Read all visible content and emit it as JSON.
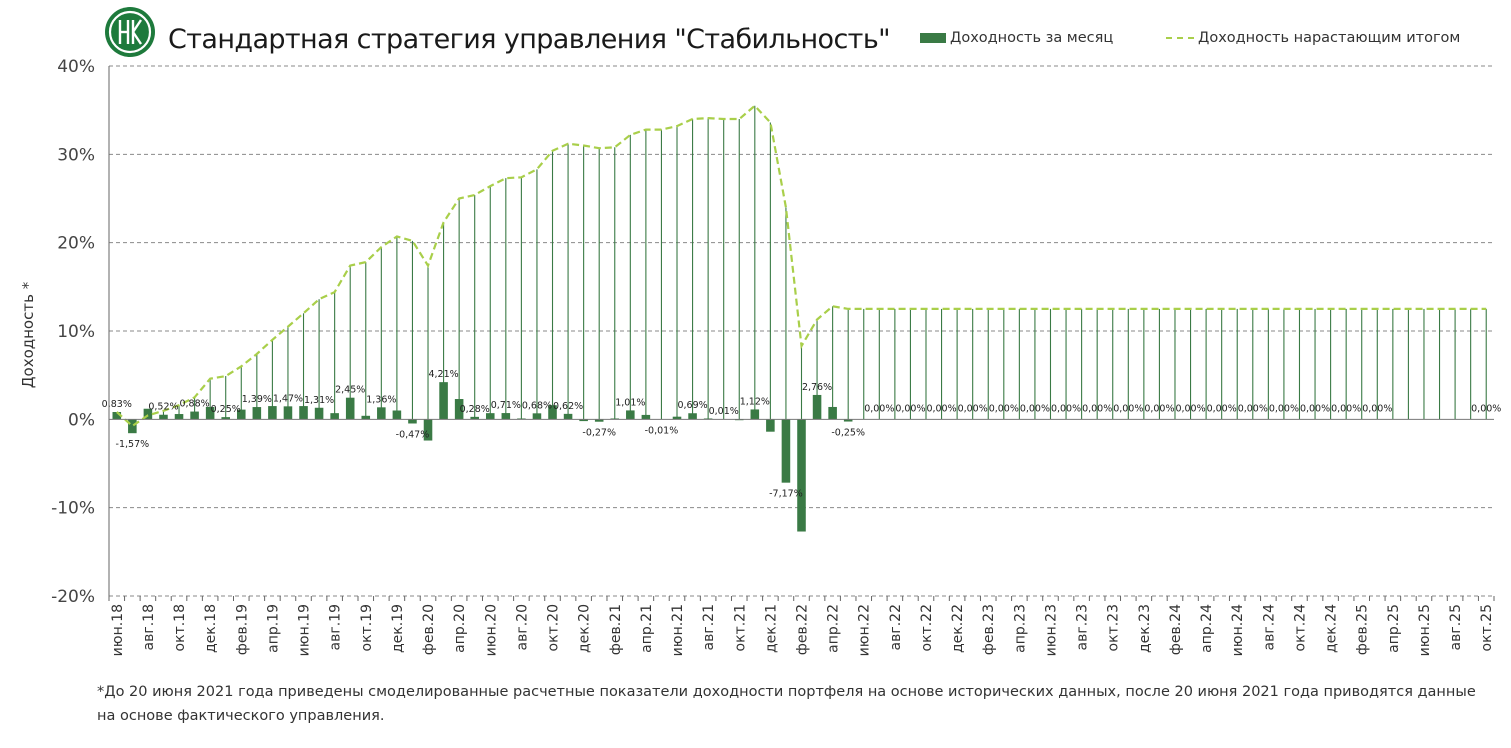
{
  "title": "Стандартная стратегия управления \"Стабильность\"",
  "footnote": "*До 20 июня 2021 года приведены смоделированные расчетные показатели доходности портфеля на основе исторических данных, после 20 июня 2021 года приводятся данные на основе фактического управления.",
  "colors": {
    "bar": "#3a7a45",
    "cum_line": "#a9cf4a",
    "drop_line": "#3a7a45",
    "grid": "#8a8a8a"
  },
  "chart_data": {
    "type": "bar",
    "ylabel": "Доходность *",
    "ylim": [
      -20,
      40
    ],
    "yticks": [
      -20,
      -10,
      0,
      10,
      20,
      30,
      40
    ],
    "ytick_labels": [
      "-20%",
      "-10%",
      "0%",
      "10%",
      "20%",
      "30%",
      "40%"
    ],
    "grid": true,
    "legend_position": "top-right",
    "x_tick_labels": [
      "июн.18",
      "авг.18",
      "окт.18",
      "дек.18",
      "фев.19",
      "апр.19",
      "июн.19",
      "авг.19",
      "окт.19",
      "дек.19",
      "фев.20",
      "апр.20",
      "июн.20",
      "авг.20",
      "окт.20",
      "дек.20",
      "фев.21",
      "апр.21",
      "июн.21",
      "авг.21",
      "окт.21",
      "дек.21",
      "фев.22",
      "апр.22",
      "июн.22",
      "авг.22",
      "окт.22",
      "дек.22",
      "фев.23",
      "апр.23",
      "июн.23",
      "авг.23",
      "окт.23",
      "дек.23",
      "фев.24",
      "апр.24",
      "июн.24",
      "авг.24",
      "окт.24",
      "дек.24",
      "фев.25",
      "апр.25",
      "июн.25",
      "авг.25",
      "окт.25"
    ],
    "series": [
      {
        "name": "Доходность за месяц",
        "type": "bar",
        "values": [
          0.83,
          -1.57,
          1.2,
          0.52,
          0.6,
          0.88,
          1.4,
          0.25,
          1.1,
          1.39,
          1.5,
          1.47,
          1.5,
          1.31,
          0.7,
          2.45,
          0.4,
          1.36,
          1.0,
          -0.47,
          -2.4,
          4.21,
          2.3,
          0.28,
          0.7,
          0.71,
          0.1,
          0.68,
          1.6,
          0.62,
          -0.2,
          -0.27,
          0.1,
          1.01,
          0.5,
          -0.01,
          0.3,
          0.69,
          0.1,
          0.01,
          -0.1,
          1.12,
          -1.4,
          -7.17,
          -12.7,
          2.76,
          1.4,
          -0.25,
          0.0,
          0.0,
          0.0,
          0.0,
          0.0,
          0.0,
          0.0,
          0.0,
          0.0,
          0.0,
          0.0,
          0.0,
          0.0,
          0.0,
          0.0,
          0.0,
          0.0,
          0.0,
          0.0,
          0.0,
          0.0,
          0.0,
          0.0,
          0.0,
          0.0,
          0.0,
          0.0,
          0.0,
          0.0,
          0.0,
          0.0,
          0.0,
          0.0,
          0.0,
          0.0,
          0.0,
          0.0,
          0.0,
          0.0,
          0.0,
          0.0
        ],
        "data_labels": [
          {
            "index": 0,
            "text": "0,83%"
          },
          {
            "index": 1,
            "text": "-1,57%"
          },
          {
            "index": 3,
            "text": "0,52%"
          },
          {
            "index": 5,
            "text": "0,88%"
          },
          {
            "index": 7,
            "text": "0,25%"
          },
          {
            "index": 9,
            "text": "1,39%"
          },
          {
            "index": 11,
            "text": "1,47%"
          },
          {
            "index": 13,
            "text": "1,31%"
          },
          {
            "index": 15,
            "text": "2,45%"
          },
          {
            "index": 17,
            "text": "1,36%"
          },
          {
            "index": 19,
            "text": "-0,47%"
          },
          {
            "index": 21,
            "text": "4,21%"
          },
          {
            "index": 23,
            "text": "0,28%"
          },
          {
            "index": 25,
            "text": "0,71%"
          },
          {
            "index": 27,
            "text": "0,68%"
          },
          {
            "index": 29,
            "text": "0,62%"
          },
          {
            "index": 31,
            "text": "-0,27%"
          },
          {
            "index": 33,
            "text": "1,01%"
          },
          {
            "index": 35,
            "text": "-0,01%"
          },
          {
            "index": 37,
            "text": "0,69%"
          },
          {
            "index": 39,
            "text": "0,01%"
          },
          {
            "index": 41,
            "text": "1,12%"
          },
          {
            "index": 43,
            "text": "-7,17%"
          },
          {
            "index": 45,
            "text": "2,76%"
          },
          {
            "index": 47,
            "text": "-0,25%"
          },
          {
            "index": 49,
            "text": "0,00%"
          },
          {
            "index": 51,
            "text": "0,00%"
          },
          {
            "index": 53,
            "text": "0,00%"
          },
          {
            "index": 55,
            "text": "0,00%"
          },
          {
            "index": 57,
            "text": "0,00%"
          },
          {
            "index": 59,
            "text": "0,00%"
          },
          {
            "index": 61,
            "text": "0,00%"
          },
          {
            "index": 63,
            "text": "0,00%"
          },
          {
            "index": 65,
            "text": "0,00%"
          },
          {
            "index": 67,
            "text": "0,00%"
          },
          {
            "index": 69,
            "text": "0,00%"
          },
          {
            "index": 71,
            "text": "0,00%"
          },
          {
            "index": 73,
            "text": "0,00%"
          },
          {
            "index": 75,
            "text": "0,00%"
          },
          {
            "index": 77,
            "text": "0,00%"
          },
          {
            "index": 79,
            "text": "0,00%"
          },
          {
            "index": 81,
            "text": "0,00%"
          },
          {
            "index": 88,
            "text": "0,00%"
          }
        ]
      },
      {
        "name": "Доходность нарастающим итогом",
        "type": "line",
        "style": "dashed",
        "values": [
          0.83,
          -0.75,
          0.45,
          0.97,
          1.6,
          2.5,
          4.6,
          4.9,
          6.0,
          7.4,
          9.0,
          10.5,
          12.0,
          13.6,
          14.4,
          17.4,
          17.8,
          19.5,
          20.7,
          20.2,
          17.4,
          22.3,
          25.0,
          25.4,
          26.4,
          27.3,
          27.4,
          28.3,
          30.4,
          31.2,
          31.0,
          30.7,
          30.8,
          32.2,
          32.8,
          32.8,
          33.2,
          34.0,
          34.1,
          34.0,
          34.0,
          35.5,
          33.6,
          24.0,
          8.3,
          11.3,
          12.8,
          12.5,
          12.5,
          12.5,
          12.5,
          12.5,
          12.5,
          12.5,
          12.5,
          12.5,
          12.5,
          12.5,
          12.5,
          12.5,
          12.5,
          12.5,
          12.5,
          12.5,
          12.5,
          12.5,
          12.5,
          12.5,
          12.5,
          12.5,
          12.5,
          12.5,
          12.5,
          12.5,
          12.5,
          12.5,
          12.5,
          12.5,
          12.5,
          12.5,
          12.5,
          12.5,
          12.5,
          12.5,
          12.5,
          12.5,
          12.5,
          12.5,
          12.5
        ]
      }
    ]
  }
}
